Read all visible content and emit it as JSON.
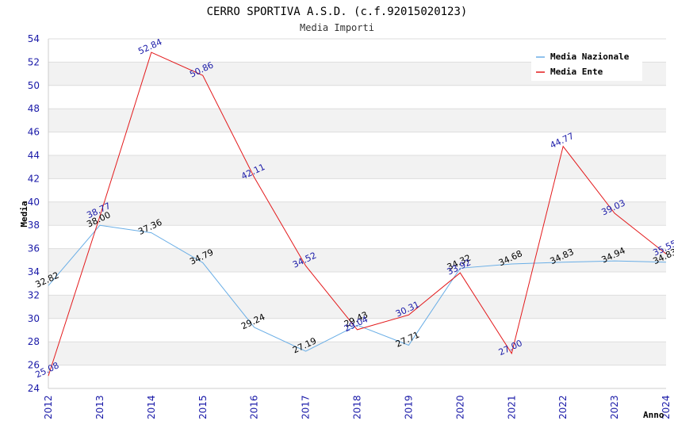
{
  "chart_data": {
    "type": "line",
    "title": "CERRO SPORTIVA A.S.D. (c.f.92015020123)",
    "subtitle": "Media Importi",
    "xlabel": "Anno",
    "ylabel": "Media",
    "ylim": [
      24,
      54
    ],
    "ytick_step": 2,
    "grid": true,
    "legend_position": "top-right",
    "x": [
      "2012",
      "2013",
      "2014",
      "2015",
      "2016",
      "2017",
      "2018",
      "2019",
      "2020",
      "2021",
      "2022",
      "2023",
      "2024"
    ],
    "series": [
      {
        "name": "Media Nazionale",
        "color": "#6aaee6",
        "values": [
          32.82,
          38.0,
          37.36,
          34.79,
          29.24,
          27.19,
          29.43,
          27.71,
          34.32,
          34.68,
          34.83,
          34.94,
          34.83
        ],
        "labels": [
          "32.82",
          "38.00",
          "37.36",
          "34.79",
          "29.24",
          "27.19",
          "29.43",
          "27.71",
          "34.32",
          "34.68",
          "34.83",
          "34.94",
          "34.83"
        ]
      },
      {
        "name": "Media Ente",
        "color": "#e31a1c",
        "values": [
          25.08,
          38.77,
          52.84,
          50.86,
          42.11,
          34.52,
          29.04,
          30.31,
          33.92,
          27.0,
          44.77,
          39.03,
          35.55
        ],
        "labels": [
          "25.08",
          "38.77",
          "52.84",
          "50.86",
          "42.11",
          "34.52",
          "29.04",
          "30.31",
          "33.92",
          "27.00",
          "44.77",
          "39.03",
          "35.55"
        ]
      }
    ]
  }
}
